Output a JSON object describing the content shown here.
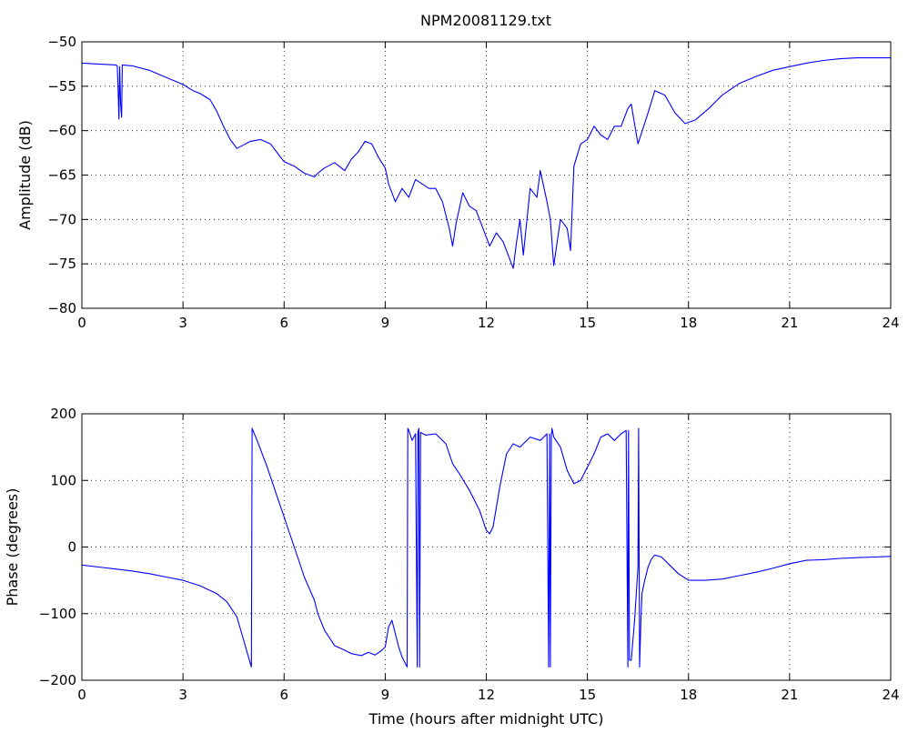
{
  "figure": {
    "title": "NPM20081129.txt",
    "line_color": "#0000ff",
    "axes_color": "#000000",
    "background": "#ffffff"
  },
  "chart_data": [
    {
      "type": "line",
      "title": "NPM20081129.txt",
      "xlabel": "",
      "ylabel": "Amplitude (dB)",
      "xlim": [
        0,
        24
      ],
      "ylim": [
        -80,
        -50
      ],
      "xticks": [
        0,
        3,
        6,
        9,
        12,
        15,
        18,
        21,
        24
      ],
      "yticks": [
        -80,
        -75,
        -70,
        -65,
        -60,
        -55,
        -50
      ],
      "xtick_labels": [
        "0",
        "3",
        "6",
        "9",
        "12",
        "15",
        "18",
        "21",
        "24"
      ],
      "ytick_labels": [
        "−80",
        "−75",
        "−70",
        "−65",
        "−60",
        "−55",
        "−50"
      ],
      "grid": true,
      "legend": "none",
      "series": [
        {
          "color": "#0000ff",
          "x": [
            0,
            0.5,
            1.0,
            1.05,
            1.08,
            1.1,
            1.12,
            1.15,
            1.18,
            1.2,
            1.5,
            2.0,
            2.5,
            3.0,
            3.3,
            3.5,
            3.8,
            4.0,
            4.2,
            4.4,
            4.6,
            4.8,
            5.0,
            5.3,
            5.6,
            5.9,
            6.0,
            6.3,
            6.6,
            6.9,
            7.0,
            7.2,
            7.5,
            7.8,
            8.0,
            8.2,
            8.4,
            8.6,
            8.8,
            9.0,
            9.1,
            9.3,
            9.5,
            9.7,
            9.9,
            10.1,
            10.3,
            10.5,
            10.7,
            10.9,
            11.0,
            11.1,
            11.3,
            11.5,
            11.7,
            11.9,
            12.1,
            12.3,
            12.5,
            12.7,
            12.8,
            12.9,
            13.0,
            13.1,
            13.3,
            13.5,
            13.6,
            13.8,
            13.9,
            14.0,
            14.2,
            14.4,
            14.5,
            14.6,
            14.8,
            15.0,
            15.2,
            15.4,
            15.6,
            15.8,
            16.0,
            16.2,
            16.3,
            16.5,
            16.8,
            17.0,
            17.3,
            17.6,
            17.9,
            18.2,
            18.6,
            19.0,
            19.5,
            20.0,
            20.5,
            21.0,
            21.5,
            22.0,
            22.5,
            23.0,
            23.5,
            24.0
          ],
          "y": [
            -52.4,
            -52.5,
            -52.6,
            -52.7,
            -56.0,
            -58.7,
            -52.8,
            -57.0,
            -58.5,
            -52.6,
            -52.7,
            -53.2,
            -54.0,
            -54.8,
            -55.5,
            -55.8,
            -56.5,
            -57.8,
            -59.5,
            -61.0,
            -62.0,
            -61.6,
            -61.2,
            -61.0,
            -61.5,
            -63.0,
            -63.5,
            -64.0,
            -64.8,
            -65.2,
            -64.8,
            -64.2,
            -63.6,
            -64.5,
            -63.2,
            -62.4,
            -61.2,
            -61.5,
            -63.0,
            -64.2,
            -66.0,
            -68.0,
            -66.5,
            -67.5,
            -65.5,
            -66.0,
            -66.5,
            -66.5,
            -68.0,
            -71.0,
            -73.0,
            -70.5,
            -67.0,
            -68.5,
            -69.0,
            -71.0,
            -73.0,
            -71.5,
            -72.5,
            -74.5,
            -75.5,
            -72.5,
            -70.0,
            -74.0,
            -66.5,
            -67.5,
            -64.5,
            -68.0,
            -70.0,
            -75.2,
            -70.0,
            -71.0,
            -73.5,
            -64.0,
            -61.5,
            -61.0,
            -59.5,
            -60.5,
            -61.0,
            -59.5,
            -59.5,
            -57.5,
            -57.0,
            -61.5,
            -58.0,
            -55.5,
            -56.0,
            -58.0,
            -59.2,
            -58.8,
            -57.5,
            -56.0,
            -54.7,
            -53.9,
            -53.2,
            -52.8,
            -52.4,
            -52.1,
            -51.9,
            -51.8,
            -51.8,
            -51.8
          ]
        }
      ]
    },
    {
      "type": "line",
      "title": "",
      "xlabel": "Time (hours after midnight UTC)",
      "ylabel": "Phase (degrees)",
      "xlim": [
        0,
        24
      ],
      "ylim": [
        -200,
        200
      ],
      "xticks": [
        0,
        3,
        6,
        9,
        12,
        15,
        18,
        21,
        24
      ],
      "yticks": [
        -200,
        -100,
        0,
        100,
        200
      ],
      "xtick_labels": [
        "0",
        "3",
        "6",
        "9",
        "12",
        "15",
        "18",
        "21",
        "24"
      ],
      "ytick_labels": [
        "−200",
        "−100",
        "0",
        "100",
        "200"
      ],
      "grid": true,
      "legend": "none",
      "series": [
        {
          "color": "#0000ff",
          "x": [
            0,
            0.5,
            1.0,
            1.5,
            2.0,
            2.5,
            3.0,
            3.5,
            4.0,
            4.3,
            4.6,
            4.8,
            5.0,
            5.03,
            5.05,
            5.2,
            5.5,
            5.8,
            6.0,
            6.3,
            6.6,
            6.9,
            7.0,
            7.2,
            7.5,
            7.8,
            8.0,
            8.3,
            8.5,
            8.7,
            8.9,
            9.0,
            9.1,
            9.2,
            9.3,
            9.4,
            9.5,
            9.6,
            9.65,
            9.67,
            9.7,
            9.8,
            9.9,
            9.95,
            9.97,
            10.0,
            10.02,
            10.05,
            10.2,
            10.5,
            10.8,
            11.0,
            11.2,
            11.5,
            11.8,
            12.0,
            12.1,
            12.2,
            12.4,
            12.6,
            12.8,
            13.0,
            13.3,
            13.6,
            13.8,
            13.85,
            13.88,
            13.9,
            13.93,
            13.95,
            14.0,
            14.2,
            14.4,
            14.6,
            14.8,
            15.0,
            15.2,
            15.4,
            15.6,
            15.8,
            16.0,
            16.15,
            16.2,
            16.22,
            16.25,
            16.3,
            16.4,
            16.5,
            16.52,
            16.55,
            16.58,
            16.62,
            16.7,
            16.8,
            16.9,
            17.0,
            17.2,
            17.4,
            17.7,
            18.0,
            18.5,
            19.0,
            19.5,
            20.0,
            20.5,
            21.0,
            21.5,
            22.0,
            22.5,
            23.0,
            23.5,
            24.0
          ],
          "y": [
            -27,
            -30,
            -33,
            -36,
            -40,
            -45,
            -50,
            -58,
            -70,
            -82,
            -105,
            -140,
            -175,
            -180,
            178,
            160,
            120,
            75,
            45,
            0,
            -45,
            -80,
            -100,
            -125,
            -148,
            -155,
            -160,
            -163,
            -158,
            -162,
            -155,
            -150,
            -120,
            -110,
            -130,
            -150,
            -165,
            -175,
            -180,
            178,
            175,
            160,
            170,
            -180,
            172,
            178,
            -180,
            172,
            168,
            170,
            155,
            125,
            110,
            85,
            55,
            25,
            20,
            30,
            90,
            140,
            155,
            150,
            165,
            160,
            170,
            -180,
            170,
            -180,
            165,
            178,
            165,
            150,
            115,
            95,
            100,
            120,
            140,
            165,
            170,
            160,
            170,
            175,
            -180,
            175,
            -170,
            -170,
            -110,
            -30,
            178,
            -180,
            -120,
            -70,
            -50,
            -30,
            -18,
            -12,
            -15,
            -25,
            -40,
            -50,
            -50,
            -48,
            -43,
            -38,
            -32,
            -25,
            -20,
            -19,
            -17,
            -16,
            -15,
            -14
          ]
        }
      ]
    }
  ]
}
